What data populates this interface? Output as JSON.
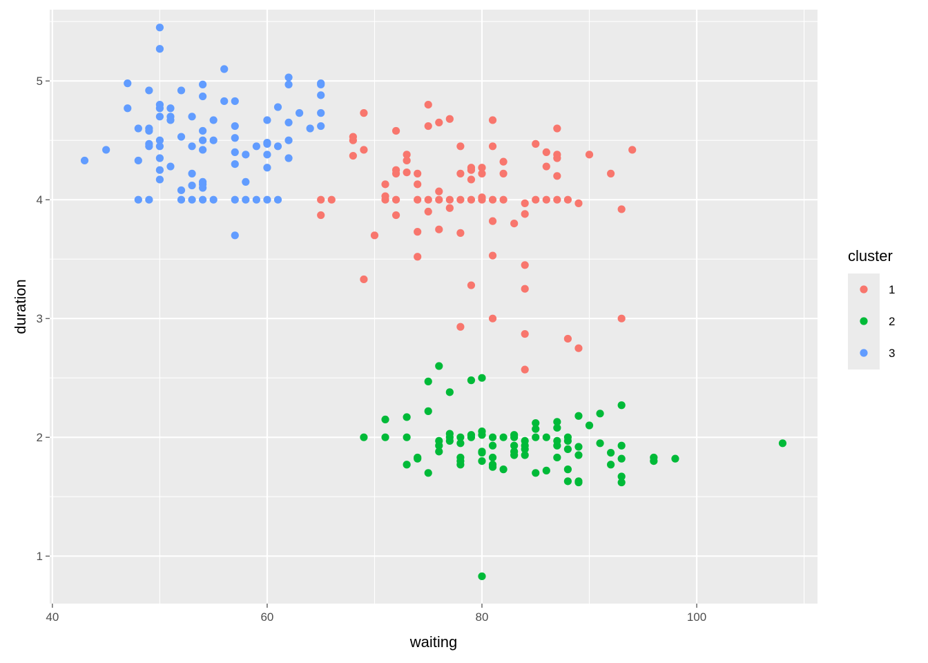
{
  "chart_data": {
    "type": "scatter",
    "xlabel": "waiting",
    "ylabel": "duration",
    "xlim": [
      39.75,
      111.25
    ],
    "ylim": [
      0.6,
      5.6
    ],
    "x_ticks": [
      40,
      60,
      80,
      100
    ],
    "x_tick_labels": [
      "40",
      "60",
      "80",
      "100"
    ],
    "y_ticks": [
      1,
      2,
      3,
      4,
      5
    ],
    "y_tick_labels": [
      "1",
      "2",
      "3",
      "4",
      "5"
    ],
    "grid": true,
    "legend": {
      "title": "cluster",
      "position": "right"
    },
    "series": [
      {
        "name": "1",
        "color": "#F8766D",
        "points": [
          [
            68,
            4.53
          ],
          [
            68,
            4.5
          ],
          [
            68,
            4.37
          ],
          [
            69,
            4.73
          ],
          [
            69,
            4.42
          ],
          [
            69,
            3.33
          ],
          [
            65,
            4.0
          ],
          [
            65,
            3.87
          ],
          [
            66,
            4.0
          ],
          [
            70,
            3.7
          ],
          [
            71,
            4.13
          ],
          [
            71,
            4.03
          ],
          [
            71,
            4.0
          ],
          [
            72,
            4.58
          ],
          [
            72,
            4.25
          ],
          [
            72,
            4.22
          ],
          [
            72,
            4.0
          ],
          [
            72,
            3.87
          ],
          [
            73,
            4.38
          ],
          [
            73,
            4.33
          ],
          [
            73,
            4.23
          ],
          [
            74,
            4.22
          ],
          [
            74,
            4.13
          ],
          [
            74,
            4.0
          ],
          [
            74,
            3.73
          ],
          [
            74,
            3.52
          ],
          [
            75,
            4.8
          ],
          [
            75,
            4.62
          ],
          [
            75,
            4.0
          ],
          [
            75,
            3.9
          ],
          [
            76,
            4.65
          ],
          [
            76,
            4.07
          ],
          [
            76,
            4.0
          ],
          [
            76,
            3.75
          ],
          [
            77,
            4.68
          ],
          [
            77,
            4.0
          ],
          [
            77,
            3.93
          ],
          [
            78,
            4.45
          ],
          [
            78,
            4.22
          ],
          [
            78,
            4.0
          ],
          [
            78,
            3.72
          ],
          [
            78,
            2.93
          ],
          [
            79,
            4.27
          ],
          [
            79,
            4.25
          ],
          [
            79,
            4.17
          ],
          [
            79,
            4.0
          ],
          [
            79,
            3.28
          ],
          [
            80,
            4.27
          ],
          [
            80,
            4.22
          ],
          [
            80,
            4.02
          ],
          [
            80,
            4.0
          ],
          [
            81,
            4.67
          ],
          [
            81,
            4.45
          ],
          [
            81,
            4.0
          ],
          [
            81,
            3.82
          ],
          [
            81,
            3.53
          ],
          [
            81,
            3.0
          ],
          [
            82,
            4.32
          ],
          [
            82,
            4.22
          ],
          [
            82,
            4.0
          ],
          [
            83,
            3.8
          ],
          [
            84,
            3.97
          ],
          [
            84,
            3.88
          ],
          [
            84,
            3.45
          ],
          [
            84,
            3.25
          ],
          [
            84,
            2.87
          ],
          [
            84,
            2.57
          ],
          [
            85,
            4.47
          ],
          [
            85,
            4.0
          ],
          [
            86,
            4.4
          ],
          [
            86,
            4.28
          ],
          [
            86,
            4.0
          ],
          [
            87,
            4.6
          ],
          [
            87,
            4.38
          ],
          [
            87,
            4.35
          ],
          [
            87,
            4.2
          ],
          [
            87,
            4.0
          ],
          [
            88,
            4.0
          ],
          [
            88,
            2.83
          ],
          [
            89,
            3.97
          ],
          [
            89,
            2.75
          ],
          [
            90,
            4.38
          ],
          [
            92,
            4.22
          ],
          [
            93,
            3.92
          ],
          [
            93,
            3.0
          ],
          [
            94,
            4.42
          ]
        ]
      },
      {
        "name": "2",
        "color": "#00BA38",
        "points": [
          [
            69,
            2.0
          ],
          [
            71,
            2.15
          ],
          [
            71,
            2.0
          ],
          [
            73,
            2.17
          ],
          [
            73,
            2.0
          ],
          [
            73,
            1.77
          ],
          [
            74,
            1.83
          ],
          [
            74,
            1.82
          ],
          [
            75,
            2.47
          ],
          [
            75,
            2.22
          ],
          [
            75,
            1.7
          ],
          [
            76,
            2.6
          ],
          [
            76,
            1.97
          ],
          [
            76,
            1.93
          ],
          [
            76,
            1.88
          ],
          [
            77,
            2.38
          ],
          [
            77,
            2.03
          ],
          [
            77,
            2.0
          ],
          [
            77,
            1.97
          ],
          [
            78,
            2.0
          ],
          [
            78,
            1.95
          ],
          [
            78,
            1.83
          ],
          [
            78,
            1.8
          ],
          [
            78,
            1.77
          ],
          [
            79,
            2.48
          ],
          [
            79,
            2.02
          ],
          [
            79,
            2.0
          ],
          [
            80,
            2.5
          ],
          [
            80,
            2.05
          ],
          [
            80,
            2.02
          ],
          [
            80,
            1.88
          ],
          [
            80,
            1.87
          ],
          [
            80,
            1.8
          ],
          [
            80,
            0.83
          ],
          [
            81,
            2.0
          ],
          [
            81,
            1.93
          ],
          [
            81,
            1.83
          ],
          [
            81,
            1.77
          ],
          [
            81,
            1.75
          ],
          [
            82,
            2.0
          ],
          [
            82,
            1.73
          ],
          [
            83,
            2.02
          ],
          [
            83,
            2.0
          ],
          [
            83,
            1.93
          ],
          [
            83,
            1.88
          ],
          [
            83,
            1.85
          ],
          [
            84,
            1.97
          ],
          [
            84,
            1.93
          ],
          [
            84,
            1.9
          ],
          [
            84,
            1.85
          ],
          [
            85,
            2.12
          ],
          [
            85,
            2.07
          ],
          [
            85,
            2.0
          ],
          [
            85,
            1.7
          ],
          [
            86,
            2.0
          ],
          [
            86,
            1.72
          ],
          [
            87,
            2.13
          ],
          [
            87,
            2.08
          ],
          [
            87,
            1.97
          ],
          [
            87,
            1.93
          ],
          [
            87,
            1.83
          ],
          [
            88,
            2.0
          ],
          [
            88,
            1.97
          ],
          [
            88,
            1.9
          ],
          [
            88,
            1.73
          ],
          [
            88,
            1.63
          ],
          [
            89,
            2.18
          ],
          [
            89,
            1.92
          ],
          [
            89,
            1.85
          ],
          [
            89,
            1.63
          ],
          [
            89,
            1.62
          ],
          [
            90,
            2.1
          ],
          [
            91,
            2.2
          ],
          [
            91,
            1.95
          ],
          [
            92,
            1.87
          ],
          [
            92,
            1.77
          ],
          [
            93,
            2.27
          ],
          [
            93,
            1.93
          ],
          [
            93,
            1.82
          ],
          [
            93,
            1.67
          ],
          [
            93,
            1.62
          ],
          [
            96,
            1.83
          ],
          [
            96,
            1.8
          ],
          [
            98,
            1.82
          ],
          [
            108,
            1.95
          ]
        ]
      },
      {
        "name": "3",
        "color": "#619CFF",
        "points": [
          [
            43,
            4.33
          ],
          [
            45,
            4.42
          ],
          [
            47,
            4.98
          ],
          [
            47,
            4.77
          ],
          [
            48,
            4.6
          ],
          [
            48,
            4.33
          ],
          [
            48,
            4.0
          ],
          [
            49,
            4.92
          ],
          [
            49,
            4.6
          ],
          [
            49,
            4.58
          ],
          [
            49,
            4.47
          ],
          [
            49,
            4.45
          ],
          [
            49,
            4.0
          ],
          [
            50,
            5.45
          ],
          [
            50,
            5.27
          ],
          [
            50,
            4.8
          ],
          [
            50,
            4.77
          ],
          [
            50,
            4.7
          ],
          [
            50,
            4.5
          ],
          [
            50,
            4.45
          ],
          [
            50,
            4.35
          ],
          [
            50,
            4.25
          ],
          [
            50,
            4.17
          ],
          [
            51,
            4.77
          ],
          [
            51,
            4.7
          ],
          [
            51,
            4.67
          ],
          [
            51,
            4.28
          ],
          [
            52,
            4.92
          ],
          [
            52,
            4.53
          ],
          [
            52,
            4.08
          ],
          [
            52,
            4.0
          ],
          [
            53,
            4.7
          ],
          [
            53,
            4.45
          ],
          [
            53,
            4.22
          ],
          [
            53,
            4.12
          ],
          [
            53,
            4.0
          ],
          [
            54,
            4.97
          ],
          [
            54,
            4.87
          ],
          [
            54,
            4.58
          ],
          [
            54,
            4.5
          ],
          [
            54,
            4.42
          ],
          [
            54,
            4.15
          ],
          [
            54,
            4.13
          ],
          [
            54,
            4.1
          ],
          [
            54,
            4.0
          ],
          [
            55,
            4.67
          ],
          [
            55,
            4.5
          ],
          [
            55,
            4.0
          ],
          [
            56,
            5.1
          ],
          [
            56,
            4.83
          ],
          [
            57,
            4.83
          ],
          [
            57,
            4.62
          ],
          [
            57,
            4.52
          ],
          [
            57,
            4.4
          ],
          [
            57,
            4.3
          ],
          [
            57,
            4.0
          ],
          [
            57,
            3.7
          ],
          [
            58,
            4.38
          ],
          [
            58,
            4.15
          ],
          [
            58,
            4.0
          ],
          [
            59,
            4.45
          ],
          [
            59,
            4.0
          ],
          [
            60,
            4.67
          ],
          [
            60,
            4.48
          ],
          [
            60,
            4.47
          ],
          [
            60,
            4.38
          ],
          [
            60,
            4.27
          ],
          [
            60,
            4.0
          ],
          [
            61,
            4.78
          ],
          [
            61,
            4.45
          ],
          [
            61,
            4.0
          ],
          [
            62,
            5.03
          ],
          [
            62,
            4.97
          ],
          [
            62,
            4.65
          ],
          [
            62,
            4.5
          ],
          [
            62,
            4.35
          ],
          [
            63,
            4.73
          ],
          [
            64,
            4.6
          ],
          [
            65,
            4.98
          ],
          [
            65,
            4.97
          ],
          [
            65,
            4.88
          ],
          [
            65,
            4.73
          ],
          [
            65,
            4.62
          ]
        ]
      }
    ]
  }
}
